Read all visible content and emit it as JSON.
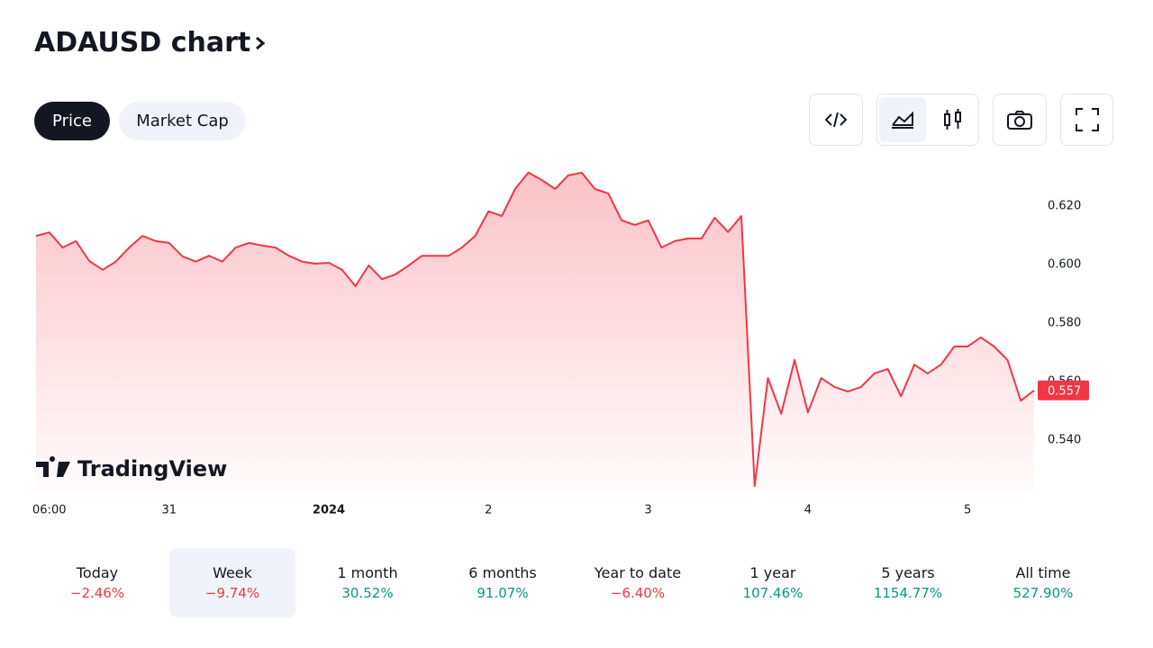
{
  "header": {
    "title": "ADAUSD chart"
  },
  "tabs": [
    {
      "label": "Price",
      "active": true
    },
    {
      "label": "Market Cap",
      "active": false
    }
  ],
  "chart_data": {
    "type": "area",
    "color": "#f23645",
    "values": [
      0.6098,
      0.611,
      0.6058,
      0.608,
      0.6012,
      0.5982,
      0.601,
      0.6058,
      0.6098,
      0.608,
      0.6074,
      0.6028,
      0.601,
      0.603,
      0.601,
      0.6058,
      0.6074,
      0.6065,
      0.6058,
      0.603,
      0.601,
      0.6003,
      0.6006,
      0.5982,
      0.5926,
      0.5997,
      0.595,
      0.5966,
      0.5997,
      0.603,
      0.603,
      0.603,
      0.6058,
      0.6098,
      0.6182,
      0.6166,
      0.6258,
      0.6314,
      0.6289,
      0.6258,
      0.6305,
      0.6314,
      0.6258,
      0.6243,
      0.6151,
      0.6135,
      0.6151,
      0.6058,
      0.608,
      0.6089,
      0.6089,
      0.616,
      0.6111,
      0.6166,
      0.5243,
      0.5612,
      0.549,
      0.5674,
      0.5495,
      0.5612,
      0.5582,
      0.5566,
      0.5582,
      0.5628,
      0.5643,
      0.555,
      0.5658,
      0.5628,
      0.5658,
      0.572,
      0.572,
      0.5751,
      0.572,
      0.5674,
      0.5535,
      0.557
    ],
    "xlim": [
      0,
      75
    ],
    "xticks": [
      {
        "value": 1,
        "label": "06:00"
      },
      {
        "value": 10,
        "label": "31"
      },
      {
        "value": 22,
        "label": "2024"
      },
      {
        "value": 34,
        "label": "2"
      },
      {
        "value": 46,
        "label": "3"
      },
      {
        "value": 58,
        "label": "4"
      },
      {
        "value": 70,
        "label": "5"
      }
    ],
    "ylim": [
      0.5228,
      0.6335
    ],
    "yticks": [
      {
        "value": 0.54,
        "label": "0.540"
      },
      {
        "value": 0.56,
        "label": "0.560"
      },
      {
        "value": 0.58,
        "label": "0.580"
      },
      {
        "value": 0.6,
        "label": "0.600"
      },
      {
        "value": 0.62,
        "label": "0.620"
      }
    ],
    "last_price_label": "0.557",
    "watermark": "TradingView"
  },
  "periods": [
    {
      "label": "Today",
      "change": "−2.46%",
      "active": false
    },
    {
      "label": "Week",
      "change": "−9.74%",
      "active": true
    },
    {
      "label": "1 month",
      "change": "30.52%",
      "active": false
    },
    {
      "label": "6 months",
      "change": "91.07%",
      "active": false
    },
    {
      "label": "Year to date",
      "change": "−6.40%",
      "active": false
    },
    {
      "label": "1 year",
      "change": "107.46%",
      "active": false
    },
    {
      "label": "5 years",
      "change": "1154.77%",
      "active": false
    },
    {
      "label": "All time",
      "change": "527.90%",
      "active": false
    }
  ]
}
